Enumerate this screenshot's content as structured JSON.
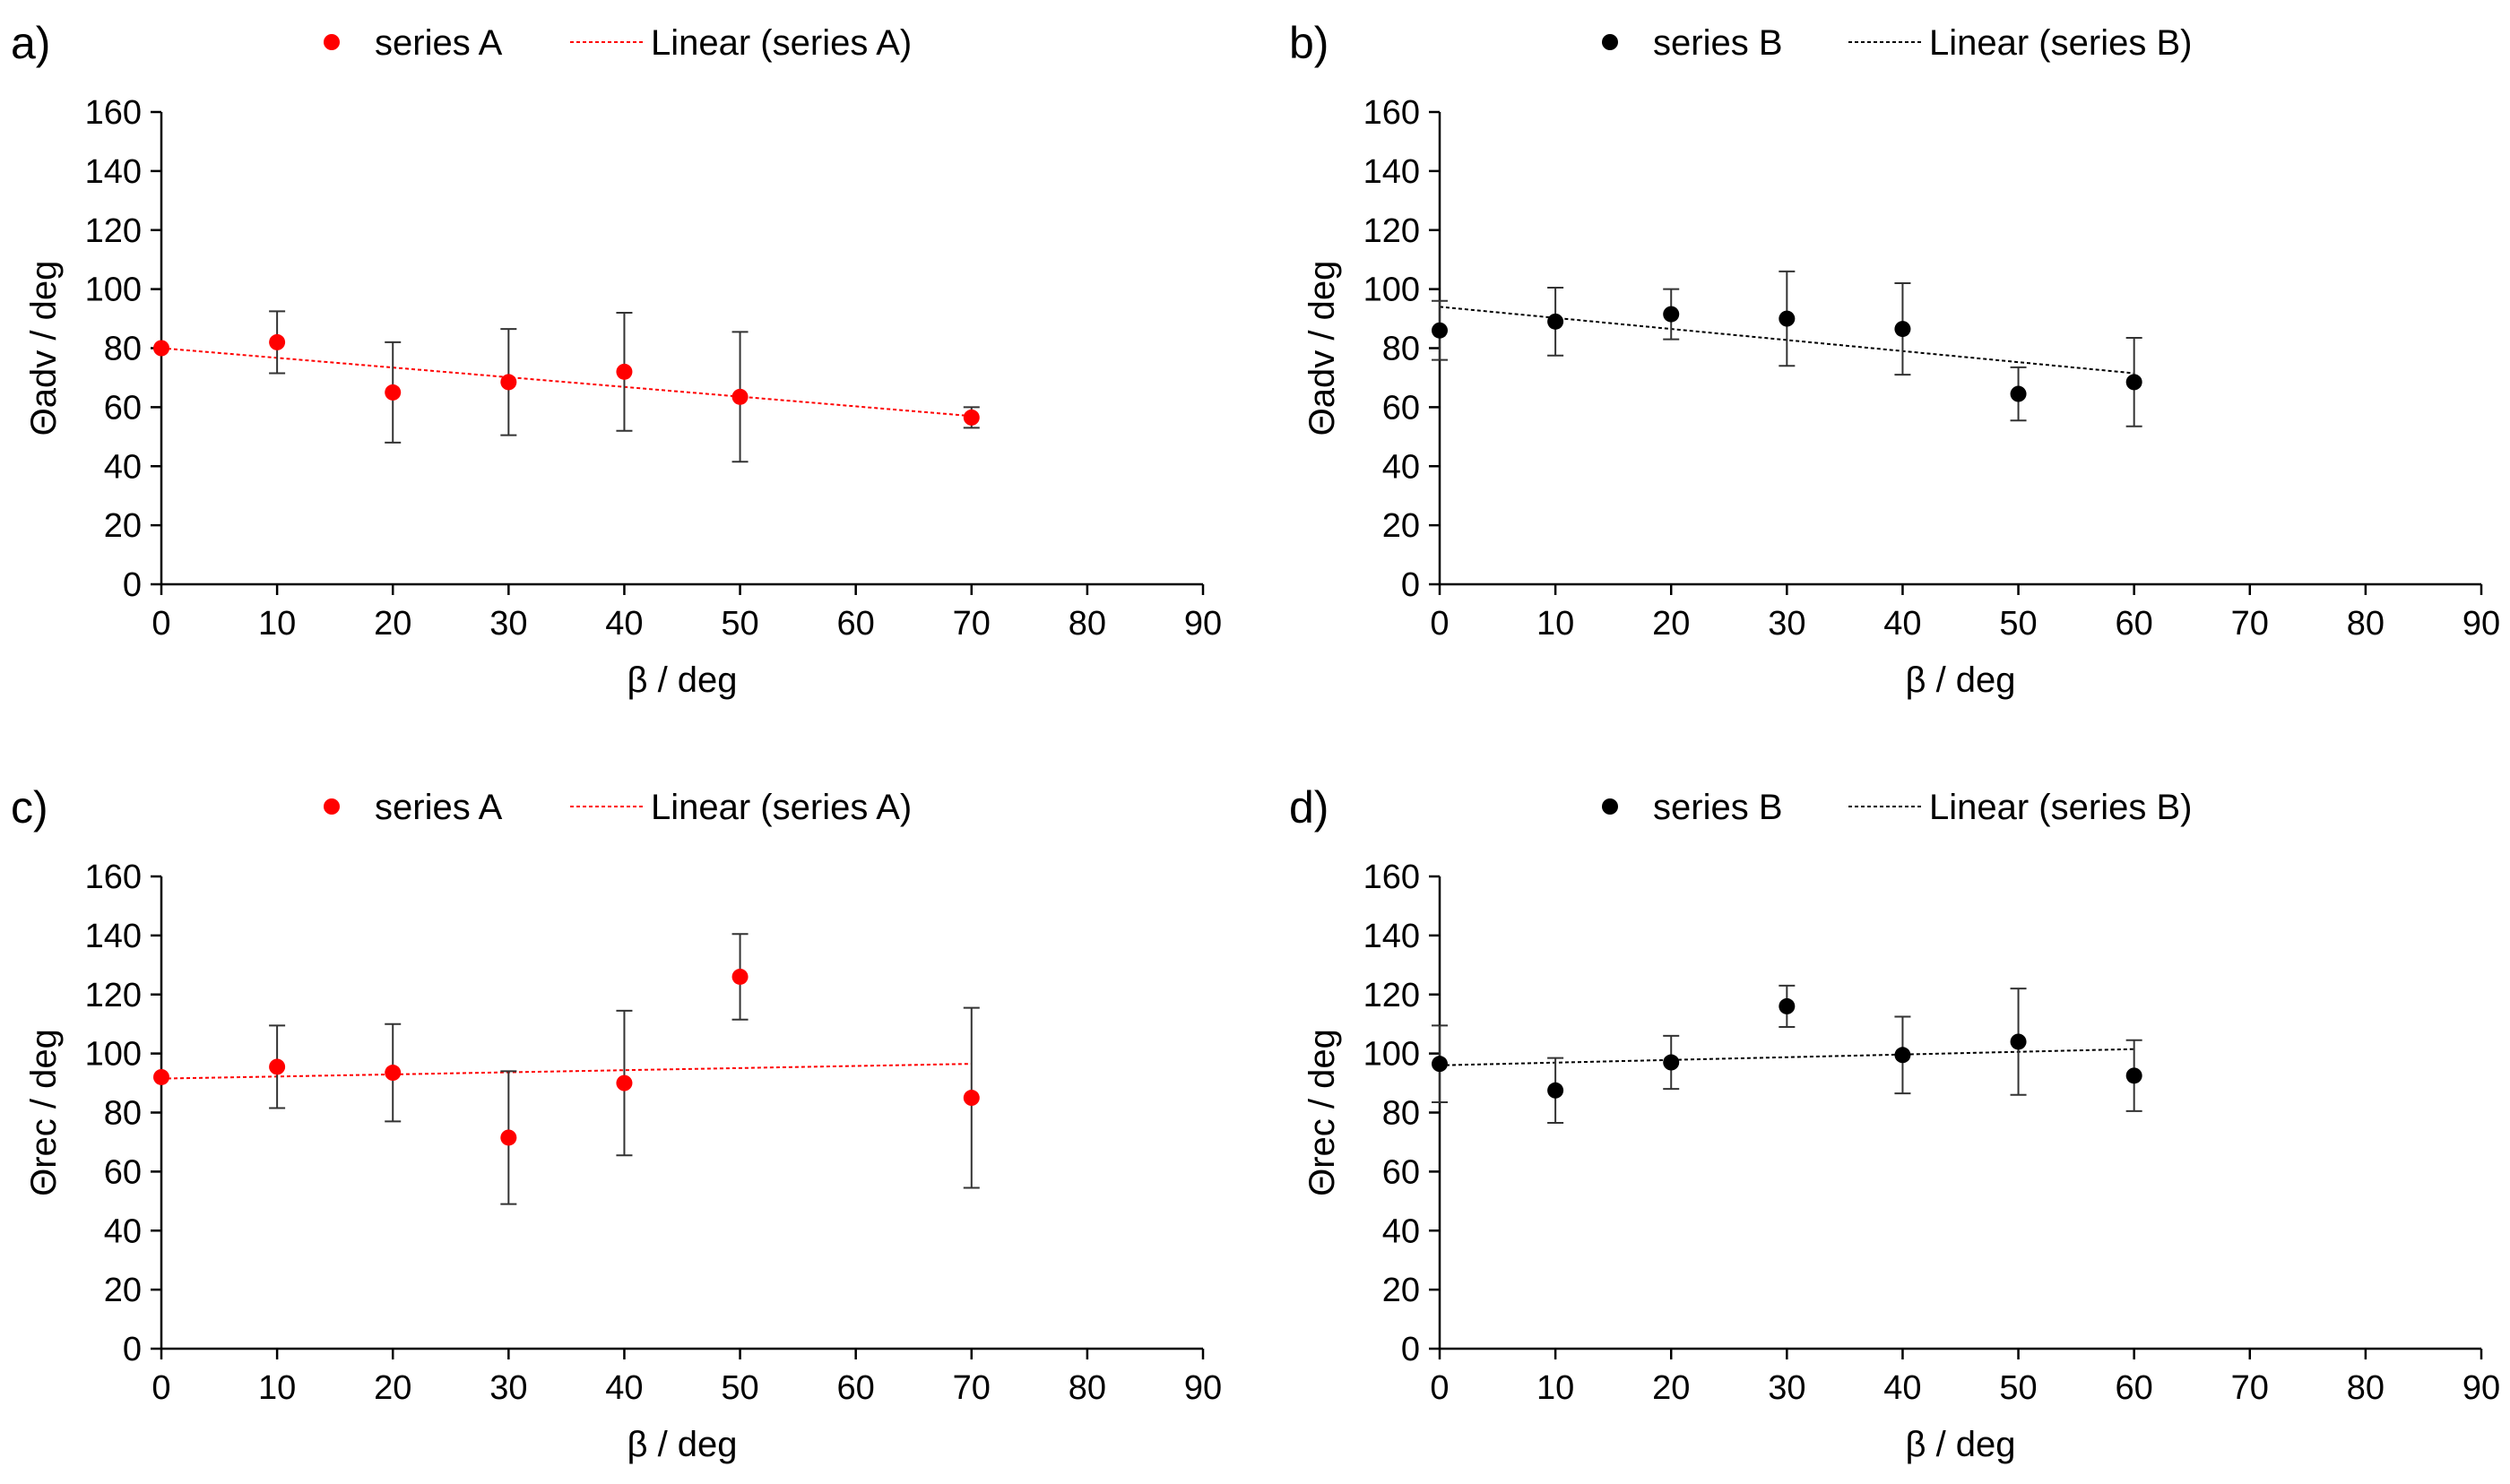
{
  "chart_data": [
    {
      "panel": "a)",
      "type": "scatter",
      "xlabel": "β / deg",
      "ylabel": "Θadv / deg",
      "xlim": [
        0,
        90
      ],
      "ylim": [
        0,
        160
      ],
      "xticks": [
        0,
        10,
        20,
        30,
        40,
        50,
        60,
        70,
        80,
        90
      ],
      "yticks": [
        0,
        20,
        40,
        60,
        80,
        100,
        120,
        140,
        160
      ],
      "grid": false,
      "legend": {
        "position": "top",
        "series_label": "series A",
        "trend_label": "Linear (series A)"
      },
      "color": "#ff0000",
      "series": [
        {
          "name": "series A",
          "x": [
            0,
            10,
            20,
            30,
            40,
            50,
            70
          ],
          "y": [
            80,
            82,
            65,
            68.5,
            72,
            63.5,
            56.5
          ],
          "err": [
            0,
            10.5,
            17,
            18,
            20,
            22,
            3.5
          ]
        }
      ],
      "trendline": {
        "name": "Linear (series A)",
        "x": [
          0,
          70
        ],
        "y": [
          80,
          57
        ]
      }
    },
    {
      "panel": "b)",
      "type": "scatter",
      "xlabel": "β / deg",
      "ylabel": "Θadv / deg",
      "xlim": [
        0,
        90
      ],
      "ylim": [
        0,
        160
      ],
      "xticks": [
        0,
        10,
        20,
        30,
        40,
        50,
        60,
        70,
        80,
        90
      ],
      "yticks": [
        0,
        20,
        40,
        60,
        80,
        100,
        120,
        140,
        160
      ],
      "grid": false,
      "legend": {
        "position": "top",
        "series_label": "series B",
        "trend_label": "Linear (series B)"
      },
      "color": "#000000",
      "series": [
        {
          "name": "series B",
          "x": [
            0,
            10,
            20,
            30,
            40,
            50,
            60
          ],
          "y": [
            86,
            89,
            91.5,
            90,
            86.5,
            64.5,
            68.5
          ],
          "err": [
            10,
            11.5,
            8.5,
            16,
            15.5,
            9,
            15
          ]
        }
      ],
      "trendline": {
        "name": "Linear (series B)",
        "x": [
          0,
          60
        ],
        "y": [
          94,
          71.5
        ]
      }
    },
    {
      "panel": "c)",
      "type": "scatter",
      "xlabel": "β / deg",
      "ylabel": "Θrec / deg",
      "xlim": [
        0,
        90
      ],
      "ylim": [
        0,
        160
      ],
      "xticks": [
        0,
        10,
        20,
        30,
        40,
        50,
        60,
        70,
        80,
        90
      ],
      "yticks": [
        0,
        20,
        40,
        60,
        80,
        100,
        120,
        140,
        160
      ],
      "grid": false,
      "legend": {
        "position": "top",
        "series_label": "series A",
        "trend_label": "Linear (series A)"
      },
      "color": "#ff0000",
      "series": [
        {
          "name": "series A",
          "x": [
            0,
            10,
            20,
            30,
            40,
            50,
            70
          ],
          "y": [
            92,
            95.5,
            93.5,
            71.5,
            90,
            126,
            85
          ],
          "err": [
            0,
            14,
            16.5,
            22.5,
            24.5,
            14.5,
            30.5
          ]
        }
      ],
      "trendline": {
        "name": "Linear (series A)",
        "x": [
          0,
          70
        ],
        "y": [
          91.5,
          96.5
        ]
      }
    },
    {
      "panel": "d)",
      "type": "scatter",
      "xlabel": "β / deg",
      "ylabel": "Θrec /  deg",
      "xlim": [
        0,
        90
      ],
      "ylim": [
        0,
        160
      ],
      "xticks": [
        0,
        10,
        20,
        30,
        40,
        50,
        60,
        70,
        80,
        90
      ],
      "yticks": [
        0,
        20,
        40,
        60,
        80,
        100,
        120,
        140,
        160
      ],
      "grid": false,
      "legend": {
        "position": "top",
        "series_label": "series B",
        "trend_label": "Linear (series B)"
      },
      "color": "#000000",
      "series": [
        {
          "name": "series B",
          "x": [
            0,
            10,
            20,
            30,
            40,
            50,
            60
          ],
          "y": [
            96.5,
            87.5,
            97,
            116,
            99.5,
            104,
            92.5
          ],
          "err": [
            13,
            11,
            9,
            7,
            13,
            18,
            12
          ]
        }
      ],
      "trendline": {
        "name": "Linear (series B)",
        "x": [
          0,
          60
        ],
        "y": [
          96,
          101.5
        ]
      }
    }
  ]
}
